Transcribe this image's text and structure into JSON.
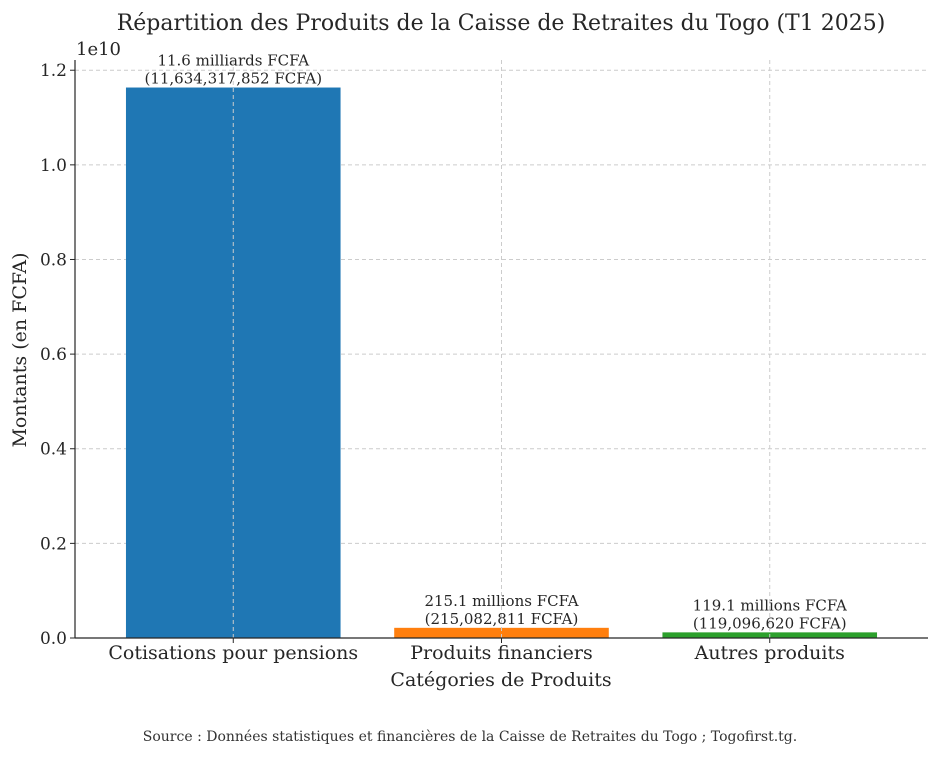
{
  "chart_data": {
    "type": "bar",
    "title": "Répartition des Produits de la Caisse de Retraites du Togo (T1 2025)",
    "xlabel": "Catégories de Produits",
    "ylabel": "Montants (en FCFA)",
    "y_offset_text": "1e10",
    "categories": [
      "Cotisations pour pensions",
      "Produits financiers",
      "Autres produits"
    ],
    "values": [
      11634317852,
      215082811,
      119096620
    ],
    "data_labels": [
      [
        "11.6 milliards FCFA",
        "(11,634,317,852 FCFA)"
      ],
      [
        "215.1 millions FCFA",
        "(215,082,811 FCFA)"
      ],
      [
        "119.1 millions FCFA",
        "(119,096,620 FCFA)"
      ]
    ],
    "colors": [
      "#1f77b4",
      "#ff7f0e",
      "#2ca02c"
    ],
    "yticks": [
      0,
      2000000000,
      4000000000,
      6000000000,
      8000000000,
      10000000000,
      12000000000
    ],
    "ytick_labels": [
      "0.0",
      "0.2",
      "0.4",
      "0.6",
      "0.8",
      "1.0",
      "1.2"
    ],
    "ylim": [
      0,
      12216033744.6
    ],
    "grid": true,
    "grid_color": "#cccccc"
  },
  "source_note": "Source : Données statistiques et financières de la Caisse de Retraites du Togo ; Togofirst.tg."
}
